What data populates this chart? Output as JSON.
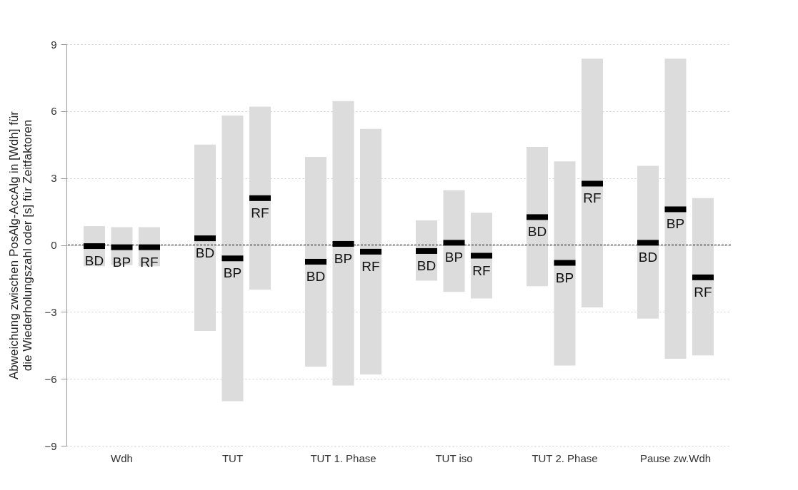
{
  "chart_data": {
    "type": "box",
    "ylabel": "Abweichung zwischen PosAlg-AccAlg in [Wdh] für die Wiederholungszahl oder [s] für Zeitfaktoren",
    "categories": [
      "Wdh",
      "TUT",
      "TUT 1. Phase",
      "TUT iso",
      "TUT 2. Phase",
      "Pause zw.Wdh"
    ],
    "series": [
      {
        "name": "BD",
        "color": "#dcdcdc",
        "boxes": [
          {
            "low": -0.95,
            "q1": -0.95,
            "median": -0.05,
            "q3": 0.85,
            "high": 0.85
          },
          {
            "low": -3.85,
            "q1": -3.85,
            "median": 0.3,
            "q3": 4.5,
            "high": 4.5
          },
          {
            "low": -5.45,
            "q1": -5.45,
            "median": -0.75,
            "q3": 3.95,
            "high": 3.95
          },
          {
            "low": -1.6,
            "q1": -1.6,
            "median": -0.27,
            "q3": 1.1,
            "high": 1.1
          },
          {
            "low": -1.85,
            "q1": -1.85,
            "median": 1.25,
            "q3": 4.4,
            "high": 4.4
          },
          {
            "low": -3.3,
            "q1": -3.3,
            "median": 0.1,
            "q3": 3.55,
            "high": 3.55
          }
        ]
      },
      {
        "name": "BP",
        "color": "#dcdcdc",
        "boxes": [
          {
            "low": -0.9,
            "q1": -0.9,
            "median": -0.1,
            "q3": 0.8,
            "high": 0.8
          },
          {
            "low": -7.0,
            "q1": -7.0,
            "median": -0.6,
            "q3": 5.8,
            "high": 5.8
          },
          {
            "low": -6.3,
            "q1": -6.3,
            "median": 0.05,
            "q3": 6.45,
            "high": 6.45
          },
          {
            "low": -2.1,
            "q1": -2.1,
            "median": 0.1,
            "q3": 2.45,
            "high": 2.45
          },
          {
            "low": -5.4,
            "q1": -5.4,
            "median": -0.8,
            "q3": 3.75,
            "high": 3.75
          },
          {
            "low": -5.1,
            "q1": -5.1,
            "median": 1.6,
            "q3": 8.35,
            "high": 8.35
          }
        ]
      },
      {
        "name": "RF",
        "color": "#dcdcdc",
        "boxes": [
          {
            "low": -0.95,
            "q1": -0.95,
            "median": -0.1,
            "q3": 0.8,
            "high": 0.8
          },
          {
            "low": -2.0,
            "q1": -2.0,
            "median": 2.1,
            "q3": 6.2,
            "high": 6.2
          },
          {
            "low": -5.8,
            "q1": -5.8,
            "median": -0.3,
            "q3": 5.2,
            "high": 5.2
          },
          {
            "low": -2.4,
            "q1": -2.4,
            "median": -0.48,
            "q3": 1.45,
            "high": 1.45
          },
          {
            "low": -2.8,
            "q1": -2.8,
            "median": 2.75,
            "q3": 8.35,
            "high": 8.35
          },
          {
            "low": -4.95,
            "q1": -4.95,
            "median": -1.45,
            "q3": 2.1,
            "high": 2.1
          }
        ]
      }
    ],
    "ylim": [
      -9,
      9
    ],
    "yticks": [
      -9,
      -6,
      -3,
      0,
      3,
      6,
      9
    ],
    "grid": "y",
    "ref_lines": [
      {
        "axis": "y",
        "value": 0,
        "color": "#000000",
        "line_style": "dashed"
      }
    ]
  }
}
